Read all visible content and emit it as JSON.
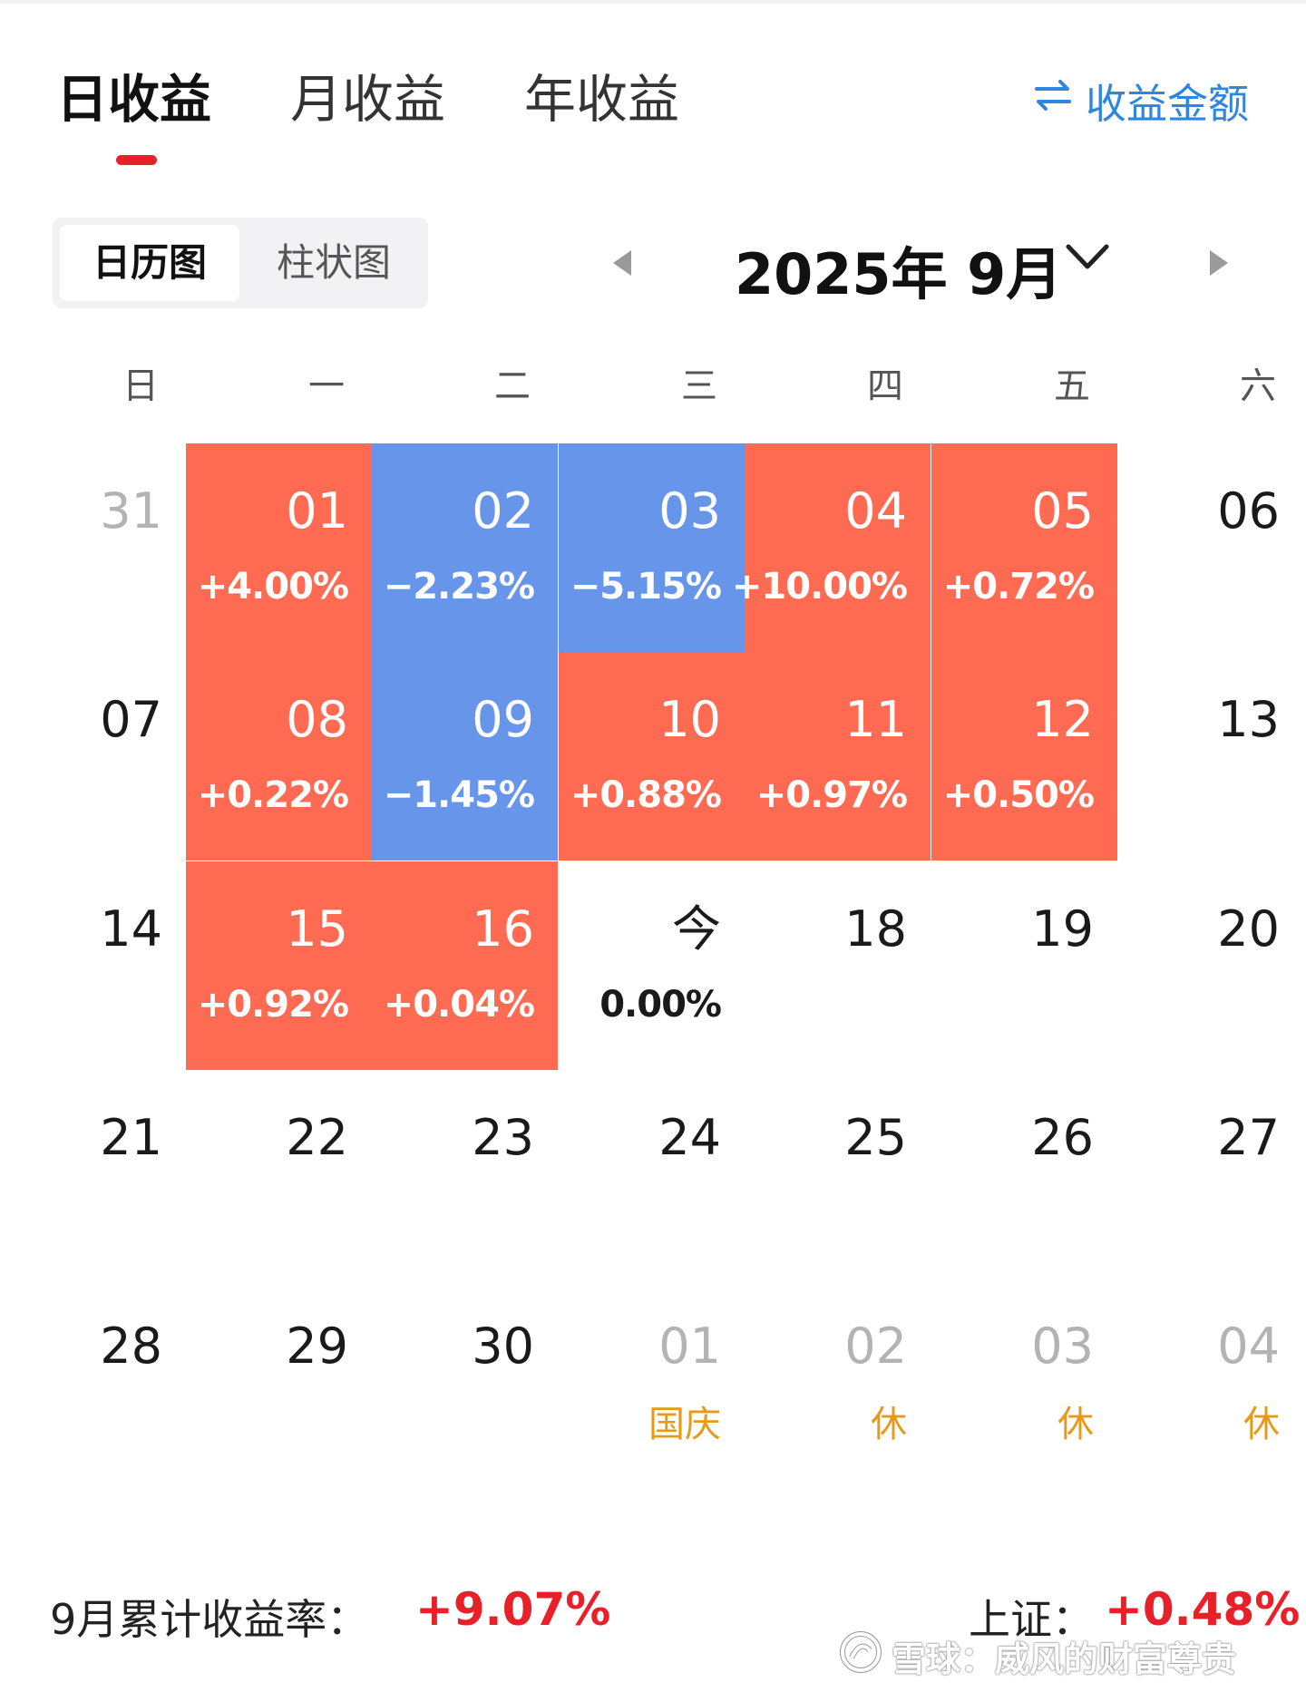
{
  "tabs": [
    {
      "label": "日收益",
      "active": true
    },
    {
      "label": "月收益",
      "active": false
    },
    {
      "label": "年收益",
      "active": false
    }
  ],
  "toggle": {
    "icon": "swap-arrows-icon",
    "label": "收益金额",
    "color": "#2e86de"
  },
  "view_switch": [
    {
      "label": "日历图",
      "active": true
    },
    {
      "label": "柱状图",
      "active": false
    }
  ],
  "month_nav": {
    "title": "2025年 9月",
    "prev_icon": "triangle-left-icon",
    "next_icon": "triangle-right-icon",
    "dropdown_icon": "chevron-down-icon"
  },
  "weekdays": [
    "日",
    "一",
    "二",
    "三",
    "四",
    "五",
    "六"
  ],
  "colors": {
    "gain": "#ff6a52",
    "loss": "#6795ea",
    "accent": "#e8202a",
    "holiday": "#e69a1a"
  },
  "calendar": {
    "weeks": [
      [
        {
          "day": "31",
          "muted": true
        },
        {
          "day": "01",
          "ret": "+4.00%",
          "status": "gain"
        },
        {
          "day": "02",
          "ret": "−2.23%",
          "status": "loss"
        },
        {
          "day": "03",
          "ret": "−5.15%",
          "status": "loss"
        },
        {
          "day": "04",
          "ret": "+10.00%",
          "status": "gain"
        },
        {
          "day": "05",
          "ret": "+0.72%",
          "status": "gain"
        },
        {
          "day": "06"
        }
      ],
      [
        {
          "day": "07"
        },
        {
          "day": "08",
          "ret": "+0.22%",
          "status": "gain"
        },
        {
          "day": "09",
          "ret": "−1.45%",
          "status": "loss"
        },
        {
          "day": "10",
          "ret": "+0.88%",
          "status": "gain"
        },
        {
          "day": "11",
          "ret": "+0.97%",
          "status": "gain"
        },
        {
          "day": "12",
          "ret": "+0.50%",
          "status": "gain"
        },
        {
          "day": "13"
        }
      ],
      [
        {
          "day": "14"
        },
        {
          "day": "15",
          "ret": "+0.92%",
          "status": "gain"
        },
        {
          "day": "16",
          "ret": "+0.04%",
          "status": "gain"
        },
        {
          "day": "今",
          "ret": "0.00%",
          "today": true
        },
        {
          "day": "18"
        },
        {
          "day": "19"
        },
        {
          "day": "20"
        }
      ],
      [
        {
          "day": "21"
        },
        {
          "day": "22"
        },
        {
          "day": "23"
        },
        {
          "day": "24"
        },
        {
          "day": "25"
        },
        {
          "day": "26"
        },
        {
          "day": "27"
        }
      ],
      [
        {
          "day": "28"
        },
        {
          "day": "29"
        },
        {
          "day": "30"
        },
        {
          "day": "01",
          "muted": true,
          "holiday": "国庆"
        },
        {
          "day": "02",
          "muted": true,
          "holiday": "休"
        },
        {
          "day": "03",
          "muted": true,
          "holiday": "休"
        },
        {
          "day": "04",
          "muted": true,
          "holiday": "休"
        }
      ]
    ]
  },
  "summary": {
    "label": "9月累计收益率：",
    "value": "+9.07%"
  },
  "index": {
    "label": "上证：",
    "value": "+0.48%"
  },
  "watermark": {
    "icon": "snowball-logo-icon",
    "text": "雪球：威风的财富尊贵"
  }
}
